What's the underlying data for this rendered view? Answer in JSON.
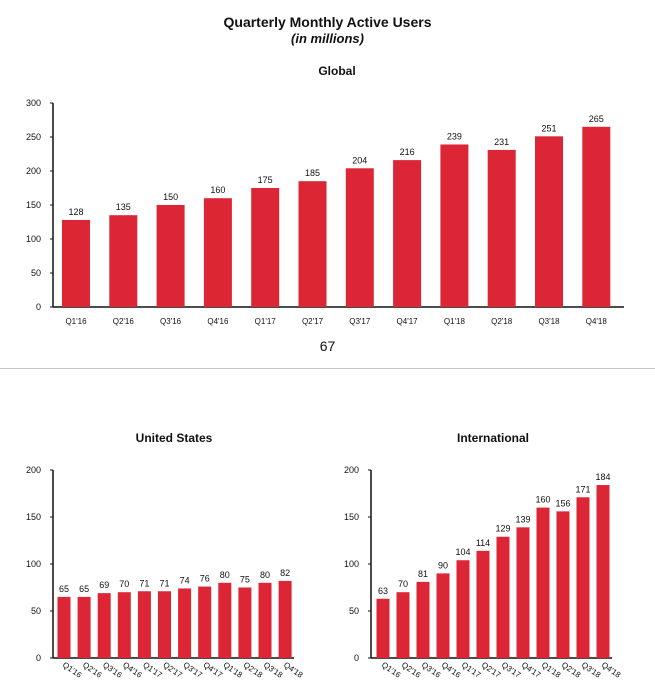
{
  "header": {
    "title": "Quarterly Monthly Active Users",
    "subtitle": "(in millions)"
  },
  "page_number": "67",
  "colors": {
    "bar": "#dc2535",
    "axis": "#111111"
  },
  "chart_data": [
    {
      "type": "bar",
      "title": "Global",
      "categories": [
        "Q1'16",
        "Q2'16",
        "Q3'16",
        "Q4'16",
        "Q1'17",
        "Q2'17",
        "Q3'17",
        "Q4'17",
        "Q1'18",
        "Q2'18",
        "Q3'18",
        "Q4'18"
      ],
      "values": [
        128,
        135,
        150,
        160,
        175,
        185,
        204,
        216,
        239,
        231,
        251,
        265
      ],
      "ylim": [
        0,
        300
      ],
      "yticks": [
        0,
        50,
        100,
        150,
        200,
        250,
        300
      ],
      "xlabel": "",
      "ylabel": ""
    },
    {
      "type": "bar",
      "title": "United States",
      "categories": [
        "Q1'16",
        "Q2'16",
        "Q3'16",
        "Q4'16",
        "Q1'17",
        "Q2'17",
        "Q3'17",
        "Q4'17",
        "Q1'18",
        "Q2'18",
        "Q3'18",
        "Q4'18"
      ],
      "values": [
        65,
        65,
        69,
        70,
        71,
        71,
        74,
        76,
        80,
        75,
        80,
        82
      ],
      "ylim": [
        0,
        200
      ],
      "yticks": [
        0,
        50,
        100,
        150,
        200
      ],
      "xlabel": "",
      "ylabel": ""
    },
    {
      "type": "bar",
      "title": "International",
      "categories": [
        "Q1'16",
        "Q2'16",
        "Q3'16",
        "Q4'16",
        "Q1'17",
        "Q2'17",
        "Q3'17",
        "Q4'17",
        "Q1'18",
        "Q2'18",
        "Q3'18",
        "Q4'18"
      ],
      "values": [
        63,
        70,
        81,
        90,
        104,
        114,
        129,
        139,
        160,
        156,
        171,
        184
      ],
      "ylim": [
        0,
        200
      ],
      "yticks": [
        0,
        50,
        100,
        150,
        200
      ],
      "xlabel": "",
      "ylabel": ""
    }
  ]
}
